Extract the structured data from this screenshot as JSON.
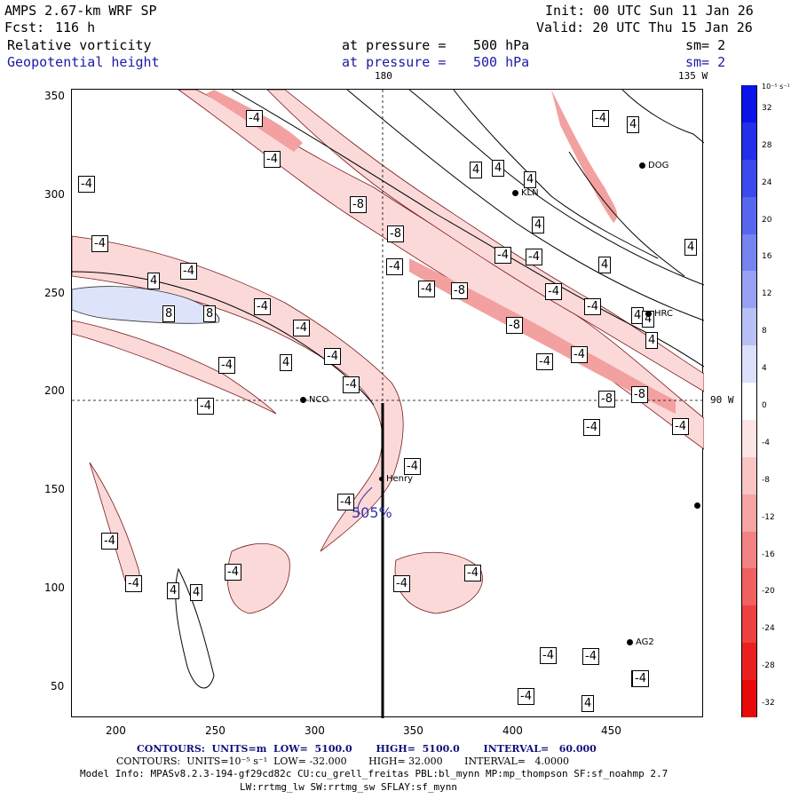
{
  "header": {
    "model": "AMPS 2.67-km WRF SP",
    "fcst_label": "Fcst:",
    "fcst_value": "116 h",
    "init": "Init: 00 UTC Sun 11 Jan 26",
    "valid": "Valid: 20 UTC Thu 15 Jan 26",
    "field1": "Relative vorticity",
    "field2": "Geopotential height",
    "pressure1_label": "at pressure =",
    "pressure1_value": "500 hPa",
    "pressure2_label": "at pressure =",
    "pressure2_value": "500 hPa",
    "sm1": "sm= 2",
    "sm2": "sm= 2"
  },
  "map_labels": {
    "lon_180": "180",
    "lon_135w": "135 W",
    "lon_90w": "90 W",
    "height_label": "505%"
  },
  "axis": {
    "x_ticks": [
      "200",
      "250",
      "300",
      "350",
      "400",
      "450"
    ],
    "y_ticks": [
      "350",
      "300",
      "250",
      "200",
      "150",
      "100",
      "50"
    ]
  },
  "colorbar": {
    "unit": "10⁻⁵ s⁻¹",
    "ticks": [
      "32",
      "28",
      "24",
      "20",
      "16",
      "12",
      "8",
      "4",
      "0",
      "-4",
      "-8",
      "-12",
      "-16",
      "-20",
      "-24",
      "-28",
      "-32"
    ],
    "colors": [
      "#0a14e8",
      "#2230ea",
      "#3a4aec",
      "#5766ee",
      "#7684f0",
      "#97a2f3",
      "#b9c0f6",
      "#dde0fa",
      "#ffffff",
      "#fde4e4",
      "#f9c4c4",
      "#f6a3a3",
      "#f38282",
      "#f06060",
      "#ed4040",
      "#ea2020",
      "#e80a0a"
    ]
  },
  "stations": [
    {
      "name": "NCO"
    },
    {
      "name": "KLN"
    },
    {
      "name": "DOG"
    },
    {
      "name": "HRC"
    },
    {
      "name": "Henry"
    },
    {
      "name": "AG2"
    }
  ],
  "contour_labels": [
    "-4",
    "-4",
    "-4",
    "-4",
    "-8",
    "-8",
    "-4",
    "-4",
    "4",
    "8",
    "8",
    "-4",
    "-4",
    "-4",
    "4",
    "-4",
    "-4",
    "-4",
    "-4",
    "4",
    "4",
    "4",
    "4",
    "-4",
    "4",
    "-8",
    "-4",
    "-4",
    "4",
    "-4",
    "-4",
    "-4",
    "4",
    "-8",
    "-4",
    "-4",
    "-8",
    "-4",
    "4",
    "-8",
    "-4",
    "4",
    "-8",
    "-4",
    "-4",
    "-4",
    "-4",
    "-4",
    "4",
    "4",
    "-4",
    "-4",
    "-4",
    "-4",
    "-4",
    "-4",
    "4",
    "4",
    "-4"
  ],
  "footer": {
    "line1": "CONTOURS:  UNITS=m  LOW=  5100.0       HIGH=  5100.0       INTERVAL=   60.000",
    "line2": "CONTOURS:  UNITS=10⁻⁵ s⁻¹  LOW= -32.000       HIGH= 32.000       INTERVAL=   4.0000",
    "line3": "Model Info: MPASv8.2.3-194-gf29cd82c CU:cu_grell_freitas PBL:bl_mynn MP:mp_thompson SF:sf_noahmp 2.7",
    "line4": "LW:rrtmg_lw SW:rrtmg_sw SFLAY:sf_mynn"
  }
}
